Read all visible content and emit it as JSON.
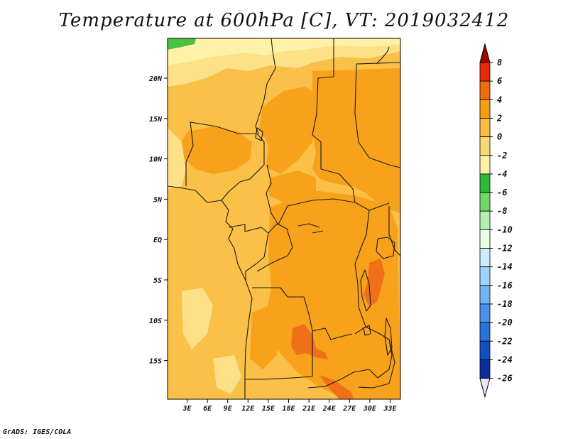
{
  "title": "Temperature at 600hPa [C], VT: 2019032412",
  "credit": "GrADS: IGES/COLA",
  "lat_labels": [
    "20N",
    "15N",
    "10N",
    "5N",
    "EQ",
    "5S",
    "10S",
    "15S"
  ],
  "lon_labels": [
    "3E",
    "6E",
    "9E",
    "12E",
    "15E",
    "18E",
    "21E",
    "24E",
    "27E",
    "30E",
    "33E"
  ],
  "colorbar": [
    {
      "label": "8",
      "color": "#a50000"
    },
    {
      "label": "6",
      "color": "#e62a0a"
    },
    {
      "label": "4",
      "color": "#f06a0e"
    },
    {
      "label": "2",
      "color": "#f59d10"
    },
    {
      "label": "0",
      "color": "#f8bd3f"
    },
    {
      "label": "-2",
      "color": "#fbd873"
    },
    {
      "label": "-4",
      "color": "#fff0a8"
    },
    {
      "label": "-6",
      "color": "#2fba3c"
    },
    {
      "label": "-8",
      "color": "#6ed96a"
    },
    {
      "label": "-10",
      "color": "#b5f0b0"
    },
    {
      "label": "-12",
      "color": "#e6ffe6"
    },
    {
      "label": "-14",
      "color": "#ccecff"
    },
    {
      "label": "-16",
      "color": "#9fd2ff"
    },
    {
      "label": "-18",
      "color": "#73b3f5"
    },
    {
      "label": "-20",
      "color": "#4a92ea"
    },
    {
      "label": "-22",
      "color": "#2a72db"
    },
    {
      "label": "-24",
      "color": "#1450c0"
    },
    {
      "label": "-26",
      "color": "#0a2e9c"
    },
    {
      "label": "",
      "color": "#06145c"
    },
    {
      "label": "",
      "color": "#e6e6ff"
    }
  ],
  "colors": {
    "base": "#fbc048",
    "warm": "#f7a21a",
    "hot": "#f0701a",
    "cool": "#fde189",
    "cold": "#fff2a8",
    "green": "#4cc13e",
    "outline": "#1a1a1a"
  }
}
